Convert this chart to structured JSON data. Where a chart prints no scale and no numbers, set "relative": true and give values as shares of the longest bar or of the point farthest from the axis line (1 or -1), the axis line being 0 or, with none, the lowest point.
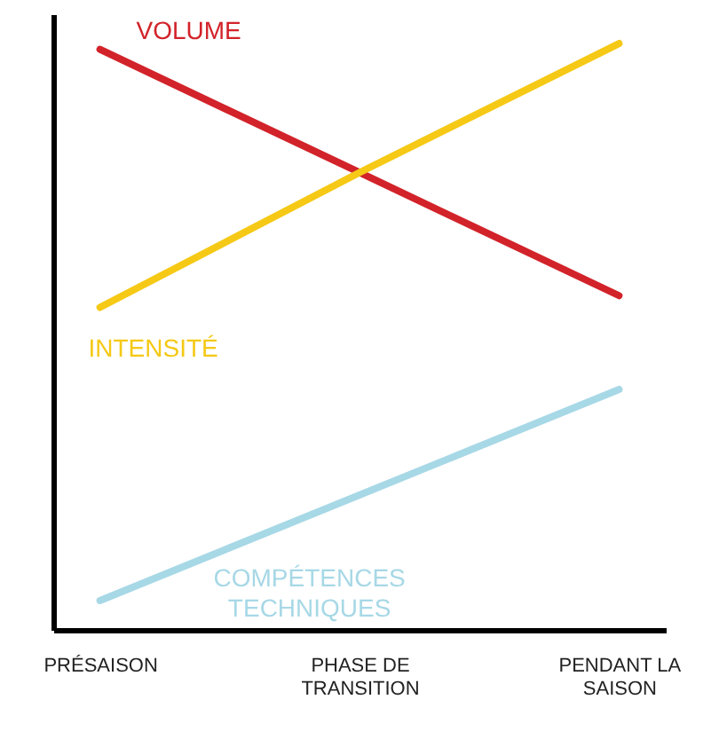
{
  "chart_data": {
    "type": "line",
    "relative": true,
    "categories": [
      "PRÉSAISON",
      "PHASE DE TRANSITION",
      "PENDANT LA SAISON"
    ],
    "grid": false,
    "marker": "none",
    "line_style": "solid",
    "series": [
      {
        "name": "VOLUME",
        "color": "#d2232a",
        "values": [
          0.99,
          0.78,
          0.57
        ]
      },
      {
        "name": "INTENSITÉ",
        "color": "#f5c915",
        "values": [
          0.55,
          0.78,
          1.0
        ]
      },
      {
        "name": "COMPÉTENCES TECHNIQUES",
        "color": "#a7d8e6",
        "values": [
          0.05,
          0.23,
          0.41
        ]
      }
    ]
  }
}
